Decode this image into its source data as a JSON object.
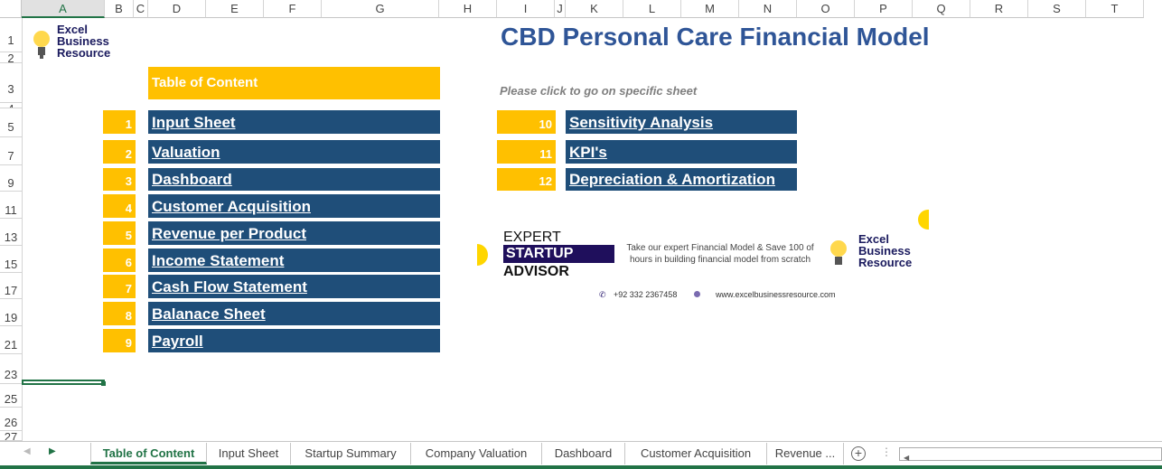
{
  "columns": [
    "A",
    "B",
    "C",
    "D",
    "E",
    "F",
    "G",
    "H",
    "I",
    "J",
    "K",
    "L",
    "M",
    "N",
    "O",
    "P",
    "Q",
    "R",
    "S",
    "T"
  ],
  "rows": [
    "1",
    "2",
    "3",
    "4",
    "5",
    "7",
    "9",
    "11",
    "13",
    "15",
    "17",
    "19",
    "21",
    "23",
    "25",
    "26",
    "27"
  ],
  "logo": {
    "line1": "Excel",
    "line2": "Business",
    "line3": "Resource"
  },
  "title": "CBD Personal Care Financial Model",
  "toc_header": "Table of Content",
  "hint": "Please click to go on specific sheet",
  "left_items": [
    {
      "num": "1",
      "label": "Input Sheet"
    },
    {
      "num": "2",
      "label": "Valuation"
    },
    {
      "num": "3",
      "label": "Dashboard"
    },
    {
      "num": "4",
      "label": "Customer Acquisition"
    },
    {
      "num": "5",
      "label": "Revenue per Product"
    },
    {
      "num": "6",
      "label": "Income Statement"
    },
    {
      "num": "7",
      "label": "Cash Flow Statement"
    },
    {
      "num": "8",
      "label": "Balanace Sheet"
    },
    {
      "num": "9",
      "label": "Payroll"
    }
  ],
  "right_items": [
    {
      "num": "10",
      "label": "Sensitivity Analysis"
    },
    {
      "num": "11",
      "label": "KPI's"
    },
    {
      "num": "12",
      "label": "Depreciation & Amortization"
    }
  ],
  "banner": {
    "expert": "EXPERT",
    "startup": "STARTUP",
    "advisor": "ADVISOR",
    "tagline": "Take our expert Financial Model & Save 100 of hours in building financial model from scratch",
    "phone": "+92 332 2367458",
    "website": "www.excelbusinessresource.com"
  },
  "tabs": [
    "Table of Content",
    "Input Sheet",
    "Startup Summary",
    "Company Valuation",
    "Dashboard",
    "Customer Acquisition",
    "Revenue ..."
  ],
  "colors": {
    "yellow": "#ffc000",
    "navy": "#1f4e79",
    "title": "#2f5597",
    "excel_green": "#217346"
  }
}
